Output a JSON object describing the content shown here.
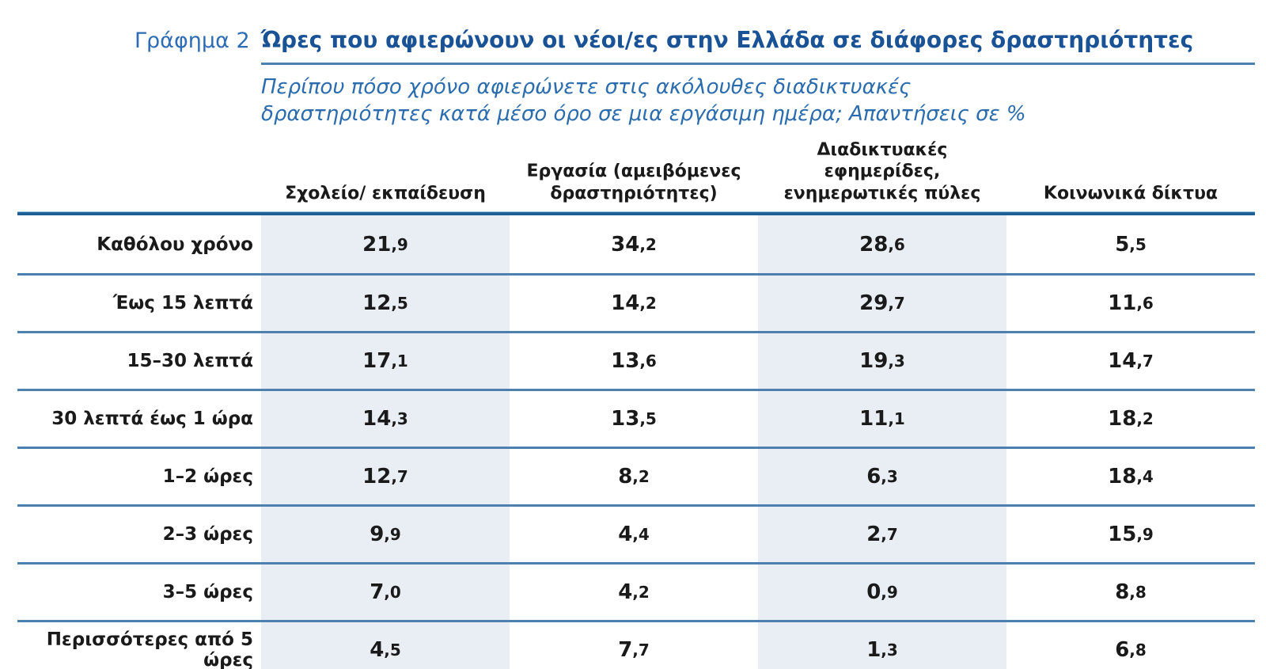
{
  "figure": {
    "label": "Γράφημα 2"
  },
  "colors": {
    "accent-dark": "#1e5f98",
    "accent-mid": "#4d80ae",
    "title-blue": "#1a5296",
    "label-blue": "#2e6db3",
    "subtitle-blue": "#2a6cad",
    "band": "#e9eef4",
    "ink": "#1a1a1a"
  },
  "chart_data": {
    "type": "table",
    "title": "Ώρες που αφιερώνουν οι νέοι/ες στην Ελλάδα σε διάφορες δραστηριότητες",
    "question": "Περίπου πόσο χρόνο αφιερώνετε στις ακόλουθες διαδικτυακές δραστηριότητες κατά μέσο όρο σε μια εργάσιμη ημέρα; Απαντήσεις σε %",
    "unit": "%",
    "decimal_separator": ",",
    "categories": [
      "Καθόλου χρόνο",
      "Έως 15 λεπτά",
      "15–30 λεπτά",
      "30 λεπτά έως 1 ώρα",
      "1–2 ώρες",
      "2–3 ώρες",
      "3–5 ώρες",
      "Περισσότερες από 5 ώρες"
    ],
    "series": [
      {
        "name": "Σχολείο/ εκπαίδευση",
        "shaded": true,
        "values": [
          21.9,
          12.5,
          17.1,
          14.3,
          12.7,
          9.9,
          7.0,
          4.5
        ]
      },
      {
        "name": "Εργασία (αμειβόμενες δραστηριότητες)",
        "shaded": false,
        "values": [
          34.2,
          14.2,
          13.6,
          13.5,
          8.2,
          4.4,
          4.2,
          7.7
        ]
      },
      {
        "name": "Διαδικτυακές εφημερίδες, ενημερωτικές πύλες",
        "shaded": true,
        "values": [
          28.6,
          29.7,
          19.3,
          11.1,
          6.3,
          2.7,
          0.9,
          1.3
        ]
      },
      {
        "name": "Κοινωνικά δίκτυα",
        "shaded": false,
        "values": [
          5.5,
          11.6,
          14.7,
          18.2,
          18.4,
          15.9,
          8.8,
          6.8
        ]
      }
    ]
  }
}
